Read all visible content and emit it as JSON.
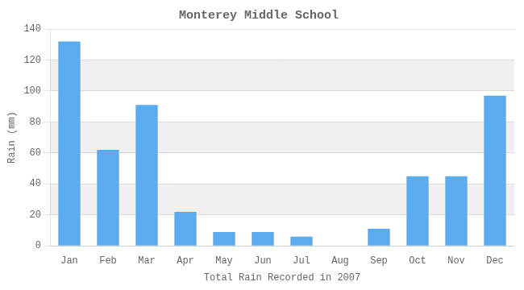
{
  "chart_data": {
    "type": "bar",
    "title": "Monterey Middle School",
    "xlabel": "Total Rain Recorded in 2007",
    "ylabel": "Rain (mm)",
    "categories": [
      "Jan",
      "Feb",
      "Mar",
      "Apr",
      "May",
      "Jun",
      "Jul",
      "Aug",
      "Sep",
      "Oct",
      "Nov",
      "Dec"
    ],
    "values": [
      132,
      62,
      91,
      22,
      9,
      9,
      6,
      0,
      11,
      45,
      45,
      97
    ],
    "color": "#5aabf0",
    "ylim": [
      0,
      140
    ],
    "yticks": [
      0,
      20,
      40,
      60,
      80,
      100,
      120,
      140
    ],
    "grid": true
  }
}
